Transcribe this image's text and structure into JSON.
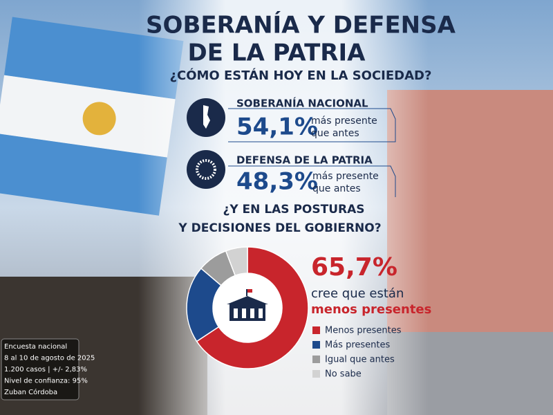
{
  "header": {
    "title_line1": "SOBERANÍA Y DEFENSA",
    "title_line2": "DE LA PATRIA",
    "subtitle": "¿CÓMO ESTÁN HOY EN LA SOCIEDAD?"
  },
  "stats": [
    {
      "label": "SOBERANÍA NACIONAL",
      "value": "54,1%",
      "note_line1": "más presente",
      "note_line2": "que antes"
    },
    {
      "label": "DEFENSA DE LA PATRIA",
      "value": "48,3%",
      "note_line1": "más presente",
      "note_line2": "que antes"
    }
  ],
  "question": {
    "line1": "¿Y EN LAS POSTURAS",
    "line2": "Y DECISIONES DEL GOBIERNO?"
  },
  "chart_data": {
    "type": "donut",
    "categories": [
      "Menos presentes",
      "Más presentes",
      "Igual que antes",
      "No sabe"
    ],
    "values": [
      65.7,
      20.5,
      8,
      5.8
    ],
    "value_labels": [
      "65,7%",
      null,
      null,
      null
    ],
    "colors": [
      "#c8252c",
      "#1d4a8c",
      "#9c9c9c",
      "#d2d2d2"
    ],
    "highlight_line1": "cree que están",
    "highlight_line2": "menos presentes"
  },
  "footnote": [
    "Encuesta nacional",
    "8 al 10 de agosto de 2025",
    "1.200 casos | +/- 2,83%",
    "Nivel de confianza: 95%",
    "Zuban Córdoba"
  ]
}
